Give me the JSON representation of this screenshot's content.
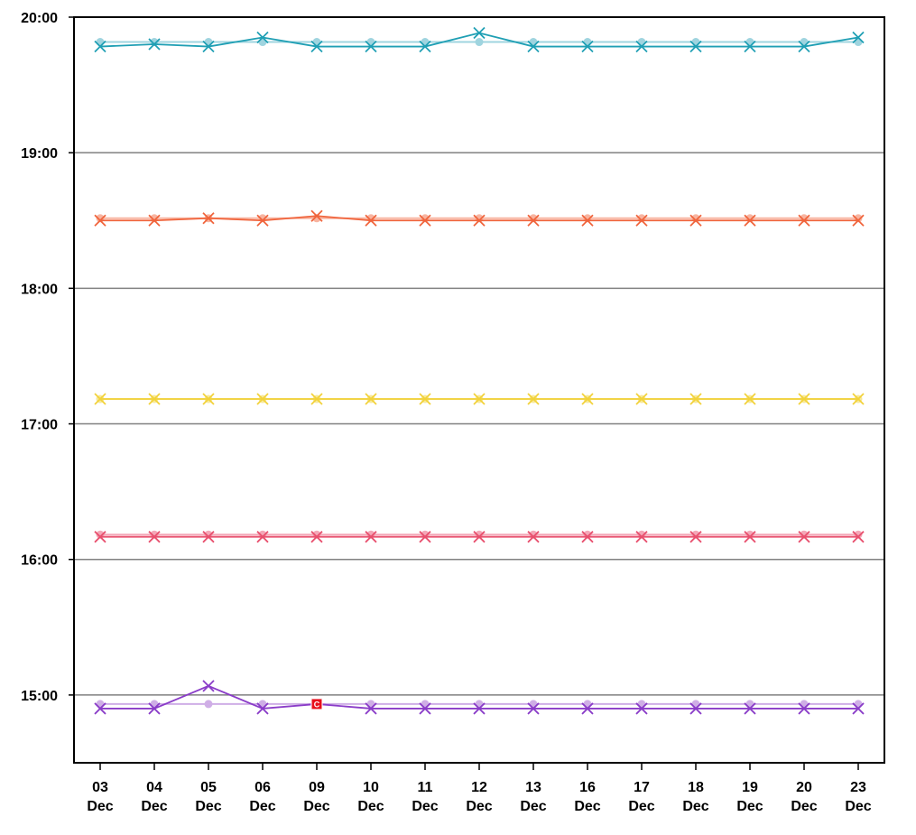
{
  "chart_data": {
    "type": "line",
    "title": "",
    "xlabel": "",
    "ylabel": "",
    "ylim": [
      "14:30",
      "20:00"
    ],
    "y_ticks": [
      "15:00",
      "16:00",
      "17:00",
      "18:00",
      "19:00",
      "20:00"
    ],
    "grid": "horizontal",
    "categories": [
      {
        "day": "03",
        "month": "Dec"
      },
      {
        "day": "04",
        "month": "Dec"
      },
      {
        "day": "05",
        "month": "Dec"
      },
      {
        "day": "06",
        "month": "Dec"
      },
      {
        "day": "09",
        "month": "Dec"
      },
      {
        "day": "10",
        "month": "Dec"
      },
      {
        "day": "11",
        "month": "Dec"
      },
      {
        "day": "12",
        "month": "Dec"
      },
      {
        "day": "13",
        "month": "Dec"
      },
      {
        "day": "16",
        "month": "Dec"
      },
      {
        "day": "17",
        "month": "Dec"
      },
      {
        "day": "18",
        "month": "Dec"
      },
      {
        "day": "19",
        "month": "Dec"
      },
      {
        "day": "20",
        "month": "Dec"
      },
      {
        "day": "23",
        "month": "Dec"
      }
    ],
    "series": [
      {
        "color": "#1f9fb4",
        "faded_color": "#9fd4df",
        "planned": [
          "19:49",
          "19:49",
          "19:49",
          "19:49",
          "19:49",
          "19:49",
          "19:49",
          "19:49",
          "19:49",
          "19:49",
          "19:49",
          "19:49",
          "19:49",
          "19:49",
          "19:49"
        ],
        "actual": [
          "19:47",
          "19:48",
          "19:47",
          "19:51",
          "19:47",
          "19:47",
          "19:47",
          "19:53",
          "19:47",
          "19:47",
          "19:47",
          "19:47",
          "19:47",
          "19:47",
          "19:51"
        ]
      },
      {
        "color": "#f0643c",
        "faded_color": "#f8b4a0",
        "planned": [
          "18:31",
          "18:31",
          "18:31",
          "18:31",
          "18:31",
          "18:31",
          "18:31",
          "18:31",
          "18:31",
          "18:31",
          "18:31",
          "18:31",
          "18:31",
          "18:31",
          "18:31"
        ],
        "actual": [
          "18:30",
          "18:30",
          "18:31",
          "18:30",
          "18:32",
          "18:30",
          "18:30",
          "18:30",
          "18:30",
          "18:30",
          "18:30",
          "18:30",
          "18:30",
          "18:30",
          "18:30"
        ]
      },
      {
        "color": "#f2d23a",
        "faded_color": "#f7e89a",
        "planned": [
          "17:11",
          "17:11",
          "17:11",
          "17:11",
          "17:11",
          "17:11",
          "17:11",
          "17:11",
          "17:11",
          "17:11",
          "17:11",
          "17:11",
          "17:11",
          "17:11",
          "17:11"
        ],
        "actual": [
          "17:11",
          "17:11",
          "17:11",
          "17:11",
          "17:11",
          "17:11",
          "17:11",
          "17:11",
          "17:11",
          "17:11",
          "17:11",
          "17:11",
          "17:11",
          "17:11",
          "17:11"
        ]
      },
      {
        "color": "#e8506e",
        "faded_color": "#f4a8b8",
        "planned": [
          "16:11",
          "16:11",
          "16:11",
          "16:11",
          "16:11",
          "16:11",
          "16:11",
          "16:11",
          "16:11",
          "16:11",
          "16:11",
          "16:11",
          "16:11",
          "16:11",
          "16:11"
        ],
        "actual": [
          "16:10",
          "16:10",
          "16:10",
          "16:10",
          "16:10",
          "16:10",
          "16:10",
          "16:10",
          "16:10",
          "16:10",
          "16:10",
          "16:10",
          "16:10",
          "16:10",
          "16:10"
        ]
      },
      {
        "color": "#8a3cc8",
        "faded_color": "#cfaee6",
        "planned": [
          "14:56",
          "14:56",
          "14:56",
          "14:56",
          "14:56",
          "14:56",
          "14:56",
          "14:56",
          "14:56",
          "14:56",
          "14:56",
          "14:56",
          "14:56",
          "14:56",
          "14:56"
        ],
        "actual": [
          "14:54",
          "14:54",
          "15:04",
          "14:54",
          "14:56",
          "14:54",
          "14:54",
          "14:54",
          "14:54",
          "14:54",
          "14:54",
          "14:54",
          "14:54",
          "14:54",
          "14:54"
        ]
      }
    ],
    "annotations": [
      {
        "series_index": 4,
        "category_index": 4,
        "text": "C",
        "color": "#e8101c"
      }
    ]
  }
}
